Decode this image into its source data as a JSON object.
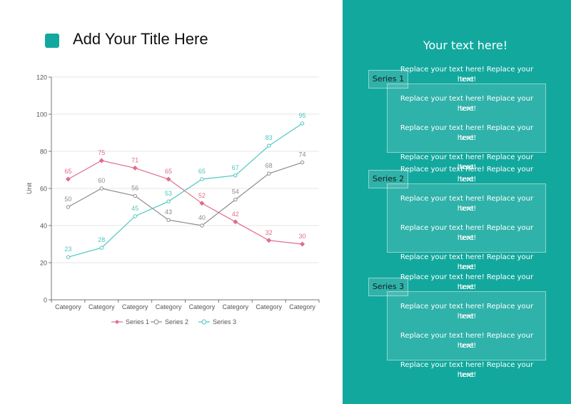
{
  "title": "Add Your Title Here",
  "colors": {
    "accent": "#13a89e",
    "panel": "#13a89e",
    "series1": "#e06d8a",
    "series2": "#8c8c8c",
    "series3": "#4cc7bf"
  },
  "chart_data": {
    "type": "line",
    "categories": [
      "Category",
      "Category",
      "Category",
      "Category",
      "Category",
      "Category",
      "Category",
      "Category"
    ],
    "series": [
      {
        "name": "Series 1",
        "values": [
          65,
          75,
          71,
          65,
          52,
          42,
          32,
          30
        ],
        "marker": "diamond"
      },
      {
        "name": "Series 2",
        "values": [
          50,
          60,
          56,
          43,
          40,
          54,
          68,
          74
        ],
        "marker": "circle"
      },
      {
        "name": "Series 3",
        "values": [
          23,
          28,
          45,
          53,
          65,
          67,
          83,
          95
        ],
        "marker": "circle"
      }
    ],
    "ylabel": "Unit",
    "ylim": [
      0,
      120
    ],
    "yticks": [
      0,
      20,
      40,
      60,
      80,
      100,
      120
    ],
    "grid": true,
    "legend": "bottom",
    "data_labels": true
  },
  "panel": {
    "heading": "Your text here!",
    "groups": [
      {
        "tag": "Series 1",
        "lines": [
          "Replace your text here!   Replace your text",
          "here!",
          "Replace your text here!   Replace your text",
          "here!",
          "Replace your text here!   Replace your text",
          "here!",
          "Replace your text here!   Replace your text",
          "here!"
        ]
      },
      {
        "tag": "Series 2",
        "lines": [
          "Replace your text here!   Replace your text",
          "here!",
          "Replace your text here!   Replace your text",
          "here!",
          "Replace your text here!   Replace your text",
          "here!",
          "Replace your text here!   Replace your text",
          "here!"
        ]
      },
      {
        "tag": "Series 3",
        "lines": [
          "Replace your text here!   Replace your text",
          "here!",
          "Replace your text here!   Replace your text",
          "here!",
          "Replace your text here!   Replace your text",
          "here!",
          "Replace your text here!   Replace your text",
          "here!"
        ]
      }
    ]
  }
}
